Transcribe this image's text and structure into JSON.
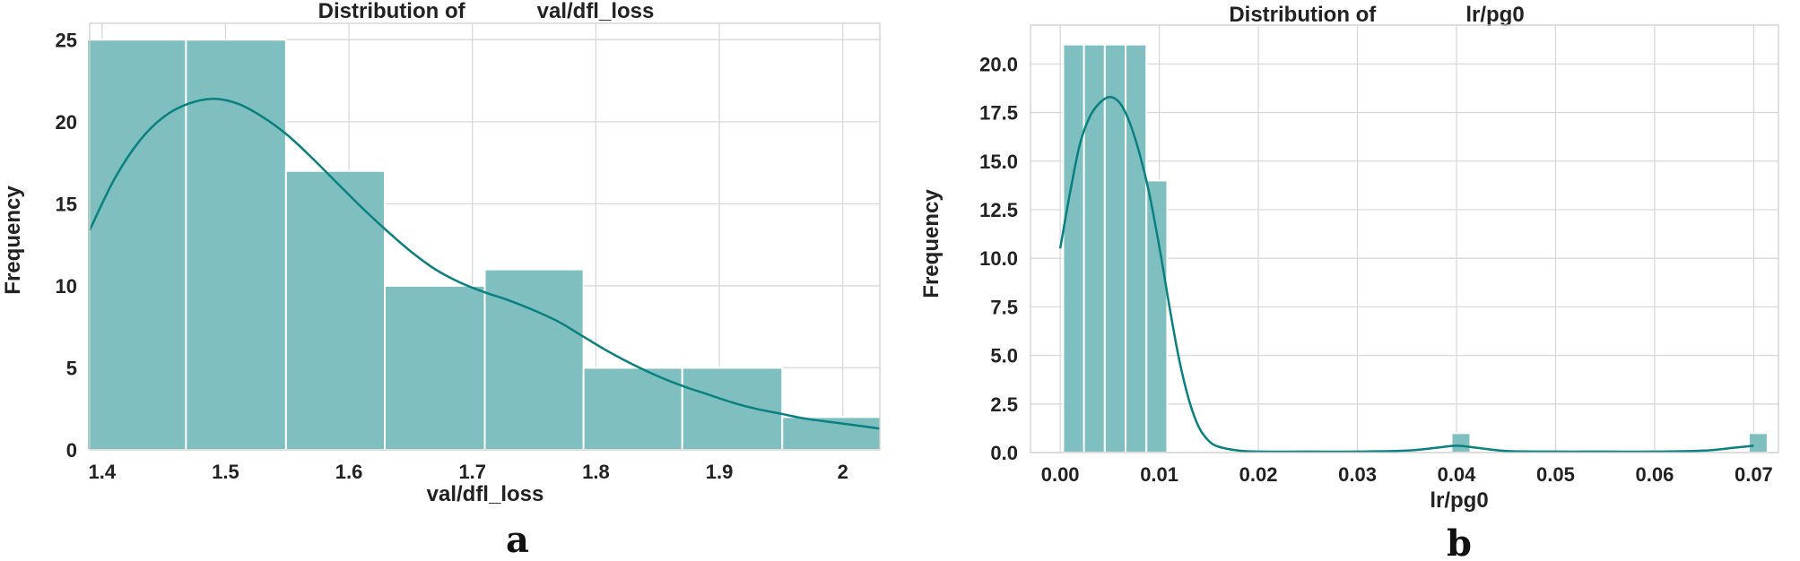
{
  "chart_data": [
    {
      "type": "bar",
      "subtype": "histogram_with_kde",
      "title": "Distribution of            val/dfl_loss",
      "xlabel": "val/dfl_loss",
      "ylabel": "Frequency",
      "panel_label": "a",
      "xlim": [
        1.39,
        2.03
      ],
      "ylim": [
        0,
        26
      ],
      "xticks": [
        1.4,
        1.5,
        1.6,
        1.7,
        1.8,
        1.9,
        2.0
      ],
      "yticks": [
        0,
        5,
        10,
        15,
        20,
        25
      ],
      "bin_edges": [
        1.388,
        1.468,
        1.549,
        1.629,
        1.71,
        1.79,
        1.87,
        1.951,
        2.031
      ],
      "values": [
        25,
        25,
        17,
        10,
        11,
        5,
        5,
        2
      ],
      "kde": {
        "x": [
          1.39,
          1.41,
          1.43,
          1.45,
          1.47,
          1.49,
          1.51,
          1.53,
          1.55,
          1.57,
          1.59,
          1.61,
          1.63,
          1.65,
          1.67,
          1.69,
          1.71,
          1.73,
          1.75,
          1.77,
          1.79,
          1.81,
          1.83,
          1.85,
          1.87,
          1.89,
          1.91,
          1.93,
          1.95,
          1.97,
          1.99,
          2.01,
          2.03
        ],
        "y": [
          13.4,
          16.5,
          18.8,
          20.3,
          21.1,
          21.4,
          21.1,
          20.3,
          19.2,
          17.8,
          16.3,
          14.8,
          13.4,
          12.1,
          11.0,
          10.2,
          9.6,
          9.1,
          8.5,
          7.8,
          6.9,
          6.0,
          5.2,
          4.5,
          3.9,
          3.4,
          2.9,
          2.5,
          2.2,
          1.9,
          1.7,
          1.5,
          1.3
        ]
      },
      "colors": {
        "bar": "#7fbfbf",
        "line": "#0a8080"
      }
    },
    {
      "type": "bar",
      "subtype": "histogram_with_kde",
      "title": "Distribution of               lr/pg0",
      "xlabel": "lr/pg0",
      "ylabel": "Frequency",
      "panel_label": "b",
      "xlim": [
        -0.003,
        0.0725
      ],
      "ylim": [
        0,
        22
      ],
      "xticks": [
        0.0,
        0.01,
        0.02,
        0.03,
        0.04,
        0.05,
        0.06,
        0.07
      ],
      "xtick_labels": [
        "0.00",
        "0.01",
        "0.02",
        "0.03",
        "0.04",
        "0.05",
        "0.06",
        "0.07"
      ],
      "yticks": [
        0,
        2.5,
        5,
        7.5,
        10,
        12.5,
        15,
        17.5,
        20
      ],
      "ytick_labels": [
        "0.0",
        "2.5",
        "5.0",
        "7.5",
        "10.0",
        "12.5",
        "15.0",
        "17.5",
        "20.0"
      ],
      "bin_edges": [
        0.0003,
        0.0024,
        0.0045,
        0.0066,
        0.0087,
        0.0108
      ],
      "values": [
        21,
        21,
        21,
        21,
        14
      ],
      "extra_bars": [
        {
          "x0": 0.0395,
          "x1": 0.0414,
          "value": 1
        },
        {
          "x0": 0.0695,
          "x1": 0.0714,
          "value": 1
        }
      ],
      "kde": {
        "x": [
          0.0,
          0.001,
          0.002,
          0.003,
          0.004,
          0.005,
          0.006,
          0.007,
          0.008,
          0.009,
          0.01,
          0.011,
          0.012,
          0.013,
          0.014,
          0.015,
          0.016,
          0.018,
          0.02,
          0.025,
          0.03,
          0.035,
          0.038,
          0.04,
          0.042,
          0.045,
          0.05,
          0.055,
          0.06,
          0.065,
          0.068,
          0.07
        ],
        "y": [
          10.5,
          13.4,
          15.9,
          17.3,
          18.0,
          18.3,
          18.0,
          17.0,
          15.4,
          13.3,
          10.6,
          7.6,
          4.8,
          2.7,
          1.3,
          0.6,
          0.3,
          0.1,
          0.05,
          0.05,
          0.05,
          0.1,
          0.25,
          0.35,
          0.25,
          0.08,
          0.05,
          0.05,
          0.05,
          0.1,
          0.25,
          0.35
        ]
      },
      "colors": {
        "bar": "#7fbfbf",
        "line": "#0a8080"
      }
    }
  ]
}
